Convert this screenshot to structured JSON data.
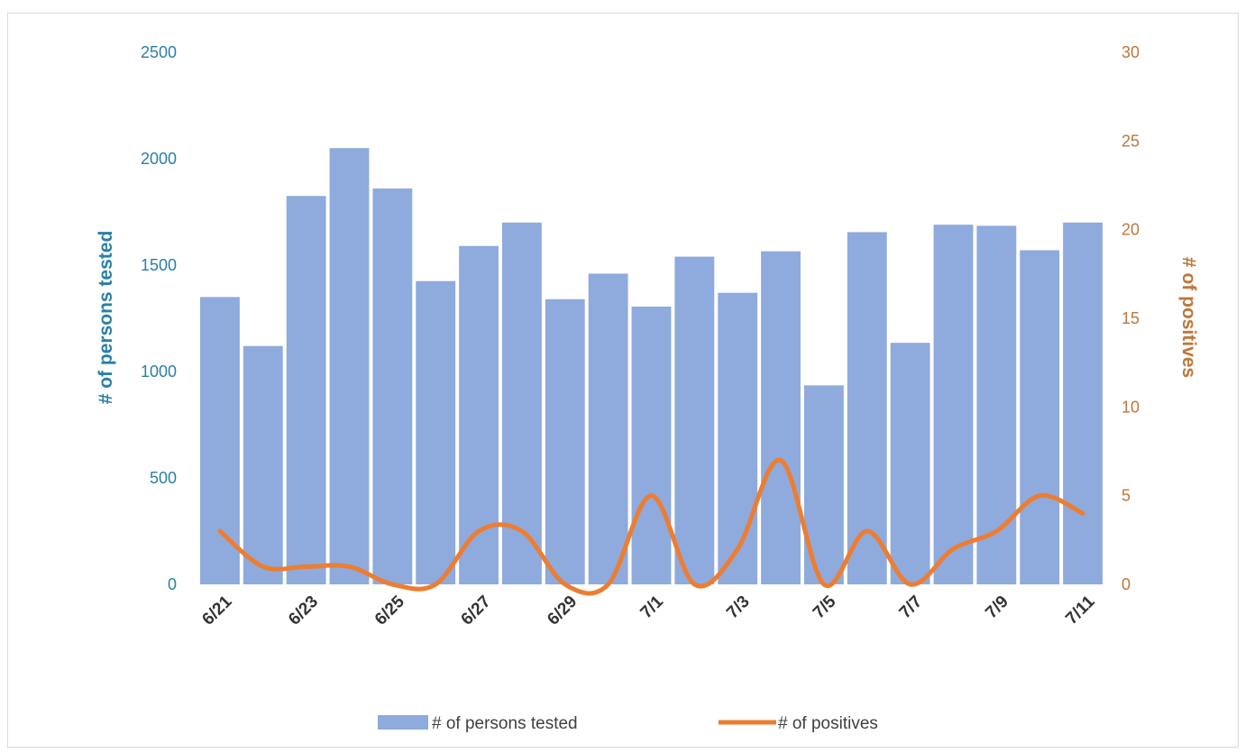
{
  "chart_data": {
    "type": "bar",
    "categories": [
      "6/21",
      "6/22",
      "6/23",
      "6/24",
      "6/25",
      "6/26",
      "6/27",
      "6/28",
      "6/29",
      "6/30",
      "7/1",
      "7/2",
      "7/3",
      "7/4",
      "7/5",
      "7/6",
      "7/7",
      "7/8",
      "7/9",
      "7/10",
      "7/11"
    ],
    "x_tick_labels": [
      "6/21",
      "6/23",
      "6/25",
      "6/27",
      "6/29",
      "7/1",
      "7/3",
      "7/5",
      "7/7",
      "7/9",
      "7/11"
    ],
    "series": [
      {
        "name": "# of persons tested",
        "type": "bar",
        "axis": "left",
        "color": "#8faadc",
        "values": [
          1350,
          1120,
          1825,
          2050,
          1860,
          1425,
          1590,
          1700,
          1340,
          1460,
          1305,
          1540,
          1370,
          1565,
          935,
          1655,
          1135,
          1690,
          1685,
          1570,
          1700
        ]
      },
      {
        "name": "# of positives",
        "type": "line",
        "axis": "right",
        "color": "#ed7d31",
        "values": [
          3,
          1,
          1,
          1,
          0,
          0,
          3,
          3,
          0,
          0,
          5,
          0,
          2,
          7,
          0,
          3,
          0,
          2,
          3,
          5,
          4
        ]
      }
    ],
    "y_left": {
      "label": "# of persons tested",
      "ticks": [
        "0",
        "500",
        "1000",
        "1500",
        "2000",
        "2500"
      ],
      "range": [
        0,
        2500
      ]
    },
    "y_right": {
      "label": "# of positives",
      "ticks": [
        "0",
        "5",
        "10",
        "15",
        "20",
        "25",
        "30"
      ],
      "range": [
        0,
        30
      ]
    },
    "legend": {
      "position": "bottom",
      "entries": [
        "# of persons tested",
        "# of positives"
      ]
    },
    "grid": false
  }
}
